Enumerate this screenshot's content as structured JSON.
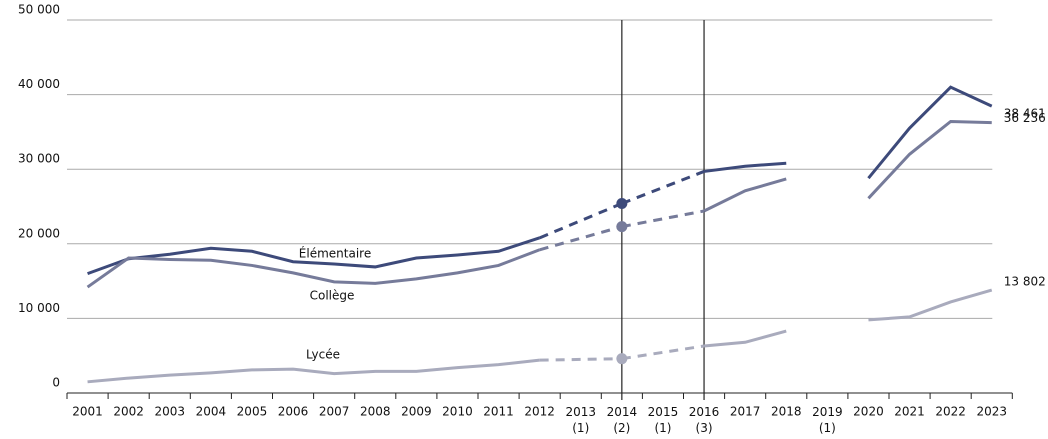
{
  "chart_data": {
    "type": "line",
    "categories": [
      "2001",
      "2002",
      "2003",
      "2004",
      "2005",
      "2006",
      "2007",
      "2008",
      "2009",
      "2010",
      "2011",
      "2012",
      "2013\n(1)",
      "2014\n(2)",
      "2015\n(1)",
      "2016\n(3)",
      "2017",
      "2018",
      "2019\n(1)",
      "2020",
      "2021",
      "2022",
      "2023"
    ],
    "ylim": [
      0,
      50000
    ],
    "yticks": [
      0,
      {
        "value": 10000,
        "label": "10 000"
      },
      {
        "value": 20000,
        "label": "20 000"
      },
      {
        "value": 30000,
        "label": "30 000"
      },
      {
        "value": 40000,
        "label": "40 000"
      },
      {
        "value": 50000,
        "label": "50 000"
      }
    ],
    "grid": true,
    "dashed_bridges": [
      12,
      14
    ],
    "points": [
      13
    ],
    "vlines": [
      13,
      15
    ],
    "series": [
      {
        "name": "Élémentaire",
        "color": "#3d4a7a",
        "values": [
          16000,
          18000,
          18600,
          19400,
          19000,
          17600,
          17300,
          16900,
          18100,
          18500,
          19000,
          20800,
          null,
          25400,
          null,
          29700,
          30400,
          30800,
          null,
          28800,
          35500,
          41000,
          38461
        ],
        "value_labels": [
          null,
          null,
          null,
          null,
          null,
          null,
          null,
          null,
          null,
          null,
          null,
          null,
          null,
          null,
          null,
          null,
          null,
          null,
          null,
          null,
          null,
          null,
          "38 461"
        ]
      },
      {
        "name": "Collège",
        "color": "#767b9a",
        "values": [
          14200,
          18100,
          17900,
          17800,
          17100,
          16100,
          14900,
          14700,
          15300,
          16100,
          17100,
          19200,
          null,
          22300,
          null,
          24400,
          27100,
          28700,
          null,
          26100,
          32000,
          36400,
          36236
        ],
        "value_labels": [
          null,
          null,
          null,
          null,
          null,
          null,
          null,
          null,
          null,
          null,
          null,
          null,
          null,
          null,
          null,
          null,
          null,
          null,
          null,
          null,
          null,
          null,
          "36 236"
        ]
      },
      {
        "name": "Lycée",
        "color": "#a9abbd",
        "values": [
          1500,
          2000,
          2400,
          2700,
          3100,
          3200,
          2600,
          2900,
          2900,
          3400,
          3800,
          4400,
          null,
          4600,
          null,
          6300,
          6800,
          8300,
          null,
          9800,
          10200,
          12200,
          13802
        ],
        "value_labels": [
          null,
          null,
          null,
          null,
          null,
          null,
          null,
          null,
          null,
          null,
          null,
          null,
          null,
          null,
          null,
          null,
          null,
          null,
          null,
          null,
          null,
          null,
          "13 802"
        ]
      }
    ]
  }
}
